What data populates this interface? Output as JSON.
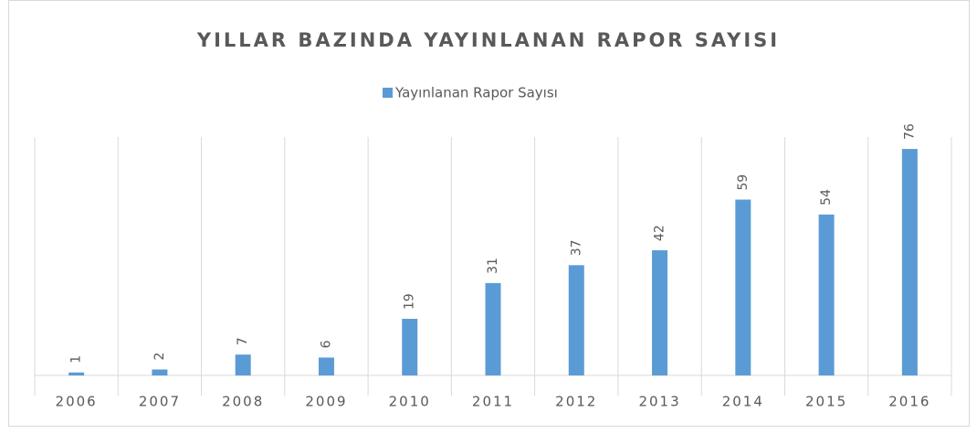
{
  "chart_data": {
    "type": "bar",
    "title": "YILLAR BAZINDA YAYINLANAN RAPOR SAYISI",
    "categories": [
      "2006",
      "2007",
      "2008",
      "2009",
      "2010",
      "2011",
      "2012",
      "2013",
      "2014",
      "2015",
      "2016"
    ],
    "series": [
      {
        "name": "Yayınlanan Rapor Sayısı",
        "color": "#5b9bd5",
        "values": [
          1,
          2,
          7,
          6,
          19,
          31,
          37,
          42,
          59,
          54,
          76
        ]
      }
    ],
    "ylim": [
      0,
      80
    ],
    "legend": "top"
  }
}
